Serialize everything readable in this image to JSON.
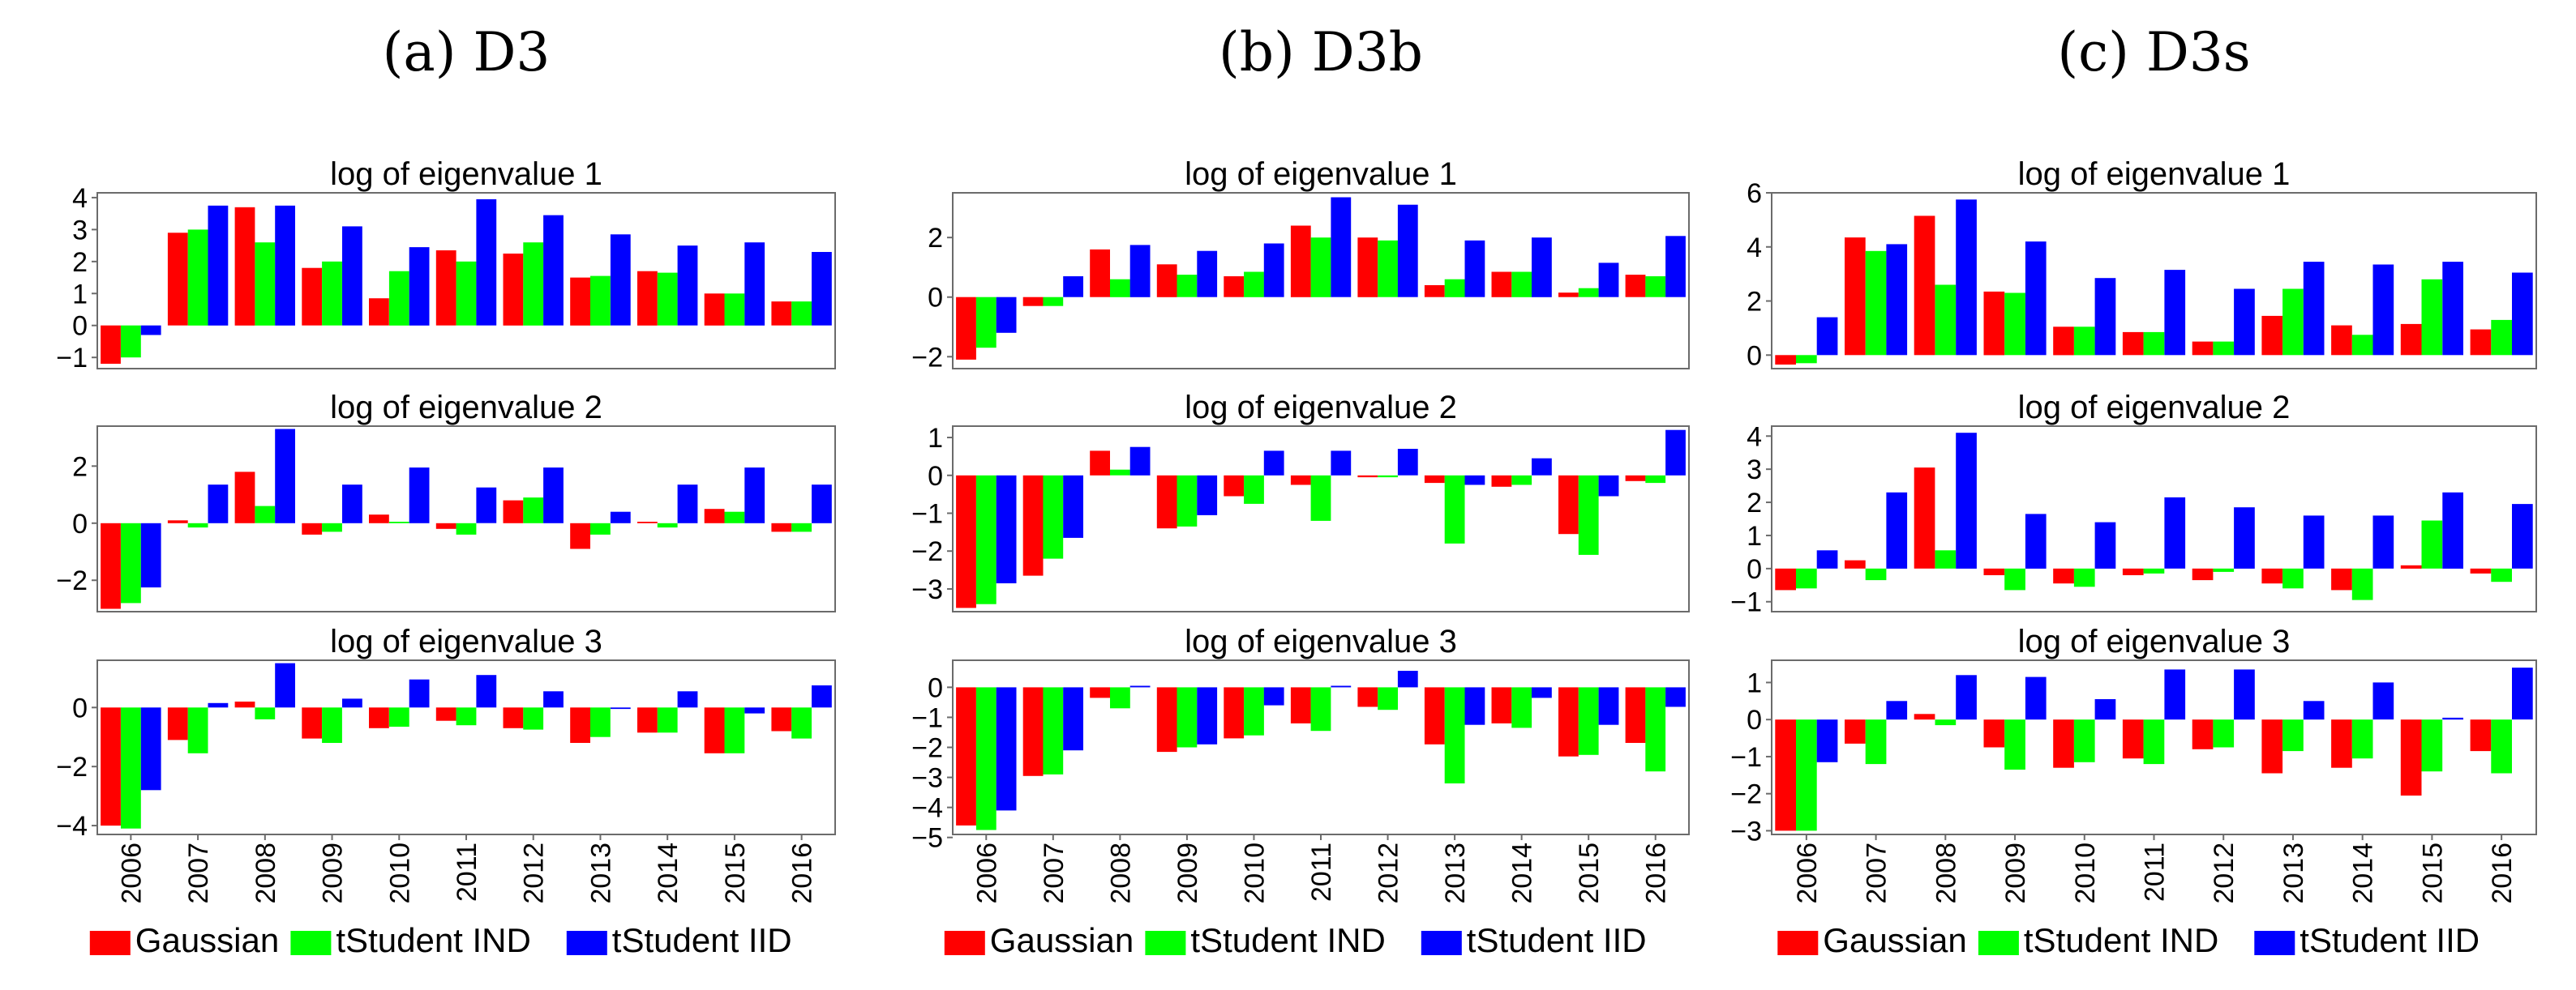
{
  "series_colors": {
    "Gaussian": "#ff0000",
    "tStudent IND": "#00ff00",
    "tStudent IID": "#0000ff"
  },
  "chart_data": [
    {
      "type": "bar",
      "title": "(a) D3",
      "categories": [
        "2006",
        "2007",
        "2008",
        "2009",
        "2010",
        "2011",
        "2012",
        "2013",
        "2014",
        "2015",
        "2016"
      ],
      "legend": [
        "Gaussian",
        "tStudent IND",
        "tStudent IID"
      ],
      "subplots": [
        {
          "title": "log of eigenvalue 1",
          "ylim": [
            -1.35,
            4.15
          ],
          "yticks": [
            -1,
            0,
            1,
            2,
            3,
            4
          ],
          "series": [
            {
              "name": "Gaussian",
              "values": [
                -1.2,
                2.9,
                3.7,
                1.8,
                0.85,
                2.35,
                2.25,
                1.5,
                1.7,
                1.0,
                0.75
              ]
            },
            {
              "name": "tStudent IND",
              "values": [
                -1.0,
                3.0,
                2.6,
                2.0,
                1.7,
                2.0,
                2.6,
                1.55,
                1.65,
                1.0,
                0.75
              ]
            },
            {
              "name": "tStudent IID",
              "values": [
                -0.3,
                3.75,
                3.75,
                3.1,
                2.45,
                3.95,
                3.45,
                2.85,
                2.5,
                2.6,
                2.3
              ]
            }
          ]
        },
        {
          "title": "log of eigenvalue 2",
          "ylim": [
            -3.1,
            3.4
          ],
          "yticks": [
            -2,
            0,
            2
          ],
          "series": [
            {
              "name": "Gaussian",
              "values": [
                -3.0,
                0.1,
                1.8,
                -0.4,
                0.3,
                -0.2,
                0.8,
                -0.9,
                0.05,
                0.5,
                -0.3
              ]
            },
            {
              "name": "tStudent IND",
              "values": [
                -2.8,
                -0.15,
                0.6,
                -0.3,
                0.05,
                -0.4,
                0.9,
                -0.4,
                -0.15,
                0.4,
                -0.3
              ]
            },
            {
              "name": "tStudent IID",
              "values": [
                -2.25,
                1.35,
                3.3,
                1.35,
                1.95,
                1.25,
                1.95,
                0.4,
                1.35,
                1.95,
                1.35
              ]
            }
          ]
        },
        {
          "title": "log of eigenvalue 3",
          "ylim": [
            -4.3,
            1.6
          ],
          "yticks": [
            -4,
            -2,
            0
          ],
          "series": [
            {
              "name": "Gaussian",
              "values": [
                -4.0,
                -1.1,
                0.2,
                -1.05,
                -0.7,
                -0.45,
                -0.7,
                -1.2,
                -0.85,
                -1.55,
                -0.8
              ]
            },
            {
              "name": "tStudent IND",
              "values": [
                -4.1,
                -1.55,
                -0.4,
                -1.2,
                -0.65,
                -0.6,
                -0.75,
                -1.0,
                -0.85,
                -1.55,
                -1.05
              ]
            },
            {
              "name": "tStudent IID",
              "values": [
                -2.8,
                0.15,
                1.5,
                0.3,
                0.95,
                1.1,
                0.55,
                -0.05,
                0.55,
                -0.2,
                0.75
              ]
            }
          ]
        }
      ]
    },
    {
      "type": "bar",
      "title": "(b) D3b",
      "categories": [
        "2006",
        "2007",
        "2008",
        "2009",
        "2010",
        "2011",
        "2012",
        "2013",
        "2014",
        "2015",
        "2016"
      ],
      "legend": [
        "Gaussian",
        "tStudent IND",
        "tStudent IID"
      ],
      "subplots": [
        {
          "title": "log of eigenvalue 1",
          "ylim": [
            -2.4,
            3.5
          ],
          "yticks": [
            -2,
            0,
            2
          ],
          "series": [
            {
              "name": "Gaussian",
              "values": [
                -2.1,
                -0.3,
                1.6,
                1.1,
                0.7,
                2.4,
                2.0,
                0.4,
                0.85,
                0.15,
                0.75
              ]
            },
            {
              "name": "tStudent IND",
              "values": [
                -1.7,
                -0.3,
                0.6,
                0.75,
                0.85,
                2.0,
                1.9,
                0.6,
                0.85,
                0.3,
                0.7
              ]
            },
            {
              "name": "tStudent IID",
              "values": [
                -1.2,
                0.7,
                1.75,
                1.55,
                1.8,
                3.35,
                3.1,
                1.9,
                2.0,
                1.15,
                2.05
              ]
            }
          ]
        },
        {
          "title": "log of eigenvalue 2",
          "ylim": [
            -3.6,
            1.3
          ],
          "yticks": [
            -3,
            -2,
            -1,
            0,
            1
          ],
          "series": [
            {
              "name": "Gaussian",
              "values": [
                -3.5,
                -2.65,
                0.65,
                -1.4,
                -0.55,
                -0.25,
                -0.05,
                -0.2,
                -0.3,
                -1.55,
                -0.15
              ]
            },
            {
              "name": "tStudent IND",
              "values": [
                -3.4,
                -2.2,
                0.15,
                -1.35,
                -0.75,
                -1.2,
                -0.05,
                -1.8,
                -0.25,
                -2.1,
                -0.2
              ]
            },
            {
              "name": "tStudent IID",
              "values": [
                -2.85,
                -1.65,
                0.75,
                -1.05,
                0.65,
                0.65,
                0.7,
                -0.25,
                0.45,
                -0.55,
                1.2
              ]
            }
          ]
        },
        {
          "title": "log of eigenvalue 3",
          "ylim": [
            -4.9,
            0.9
          ],
          "yticks": [
            -5,
            -4,
            -3,
            -2,
            -1,
            0
          ],
          "series": [
            {
              "name": "Gaussian",
              "values": [
                -4.6,
                -2.95,
                -0.35,
                -2.15,
                -1.7,
                -1.2,
                -0.65,
                -1.9,
                -1.2,
                -2.3,
                -1.85
              ]
            },
            {
              "name": "tStudent IND",
              "values": [
                -4.75,
                -2.9,
                -0.7,
                -2.0,
                -1.6,
                -1.45,
                -0.75,
                -3.2,
                -1.35,
                -2.25,
                -2.8
              ]
            },
            {
              "name": "tStudent IID",
              "values": [
                -4.1,
                -2.1,
                0.05,
                -1.9,
                -0.6,
                0.05,
                0.55,
                -1.25,
                -0.35,
                -1.25,
                -0.65
              ]
            }
          ]
        }
      ]
    },
    {
      "type": "bar",
      "title": "(c) D3s",
      "categories": [
        "2006",
        "2007",
        "2008",
        "2009",
        "2010",
        "2011",
        "2012",
        "2013",
        "2014",
        "2015",
        "2016"
      ],
      "legend": [
        "Gaussian",
        "tStudent IND",
        "tStudent IID"
      ],
      "subplots": [
        {
          "title": "log of eigenvalue 1",
          "ylim": [
            -0.5,
            6.0
          ],
          "yticks": [
            0,
            2,
            4,
            6
          ],
          "series": [
            {
              "name": "Gaussian",
              "values": [
                -0.35,
                4.35,
                5.15,
                2.35,
                1.05,
                0.85,
                0.5,
                1.45,
                1.1,
                1.15,
                0.95
              ]
            },
            {
              "name": "tStudent IND",
              "values": [
                -0.3,
                3.85,
                2.6,
                2.3,
                1.05,
                0.85,
                0.5,
                2.45,
                0.75,
                2.8,
                1.3
              ]
            },
            {
              "name": "tStudent IID",
              "values": [
                1.4,
                4.1,
                5.75,
                4.2,
                2.85,
                3.15,
                2.45,
                3.45,
                3.35,
                3.45,
                3.05
              ]
            }
          ]
        },
        {
          "title": "log of eigenvalue 2",
          "ylim": [
            -1.3,
            4.3
          ],
          "yticks": [
            -1,
            0,
            1,
            2,
            3,
            4
          ],
          "series": [
            {
              "name": "Gaussian",
              "values": [
                -0.65,
                0.25,
                3.05,
                -0.2,
                -0.45,
                -0.2,
                -0.35,
                -0.45,
                -0.65,
                0.1,
                -0.15
              ]
            },
            {
              "name": "tStudent IND",
              "values": [
                -0.6,
                -0.35,
                0.55,
                -0.65,
                -0.55,
                -0.15,
                -0.1,
                -0.6,
                -0.95,
                1.45,
                -0.4
              ]
            },
            {
              "name": "tStudent IID",
              "values": [
                0.55,
                2.3,
                4.1,
                1.65,
                1.4,
                2.15,
                1.85,
                1.6,
                1.6,
                2.3,
                1.95
              ]
            }
          ]
        },
        {
          "title": "log of eigenvalue 3",
          "ylim": [
            -3.1,
            1.6
          ],
          "yticks": [
            -3,
            -2,
            -1,
            0,
            1
          ],
          "series": [
            {
              "name": "Gaussian",
              "values": [
                -3.0,
                -0.65,
                0.15,
                -0.75,
                -1.3,
                -1.05,
                -0.8,
                -1.45,
                -1.3,
                -2.05,
                -0.85
              ]
            },
            {
              "name": "tStudent IND",
              "values": [
                -3.0,
                -1.2,
                -0.15,
                -1.35,
                -1.15,
                -1.2,
                -0.75,
                -0.85,
                -1.05,
                -1.4,
                -1.45
              ]
            },
            {
              "name": "tStudent IID",
              "values": [
                -1.15,
                0.5,
                1.2,
                1.15,
                0.55,
                1.35,
                1.35,
                0.5,
                1.0,
                0.05,
                1.4
              ]
            }
          ]
        }
      ]
    }
  ]
}
